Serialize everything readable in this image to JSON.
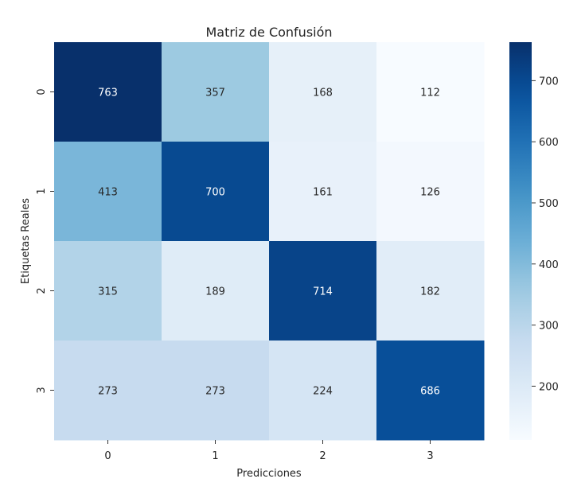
{
  "chart_data": {
    "type": "heatmap",
    "title": "Matriz de Confusión",
    "xlabel": "Predicciones",
    "ylabel": "Etiquetas Reales",
    "x_categories": [
      "0",
      "1",
      "2",
      "3"
    ],
    "y_categories": [
      "0",
      "1",
      "2",
      "3"
    ],
    "matrix": [
      [
        763,
        357,
        168,
        112
      ],
      [
        413,
        700,
        161,
        126
      ],
      [
        315,
        189,
        714,
        182
      ],
      [
        273,
        273,
        224,
        686
      ]
    ],
    "colormap": "Blues",
    "colorbar": {
      "min": 112,
      "max": 763,
      "ticks": [
        200,
        300,
        400,
        500,
        600,
        700
      ],
      "tick_labels": [
        "200",
        "300",
        "400",
        "500",
        "600",
        "700"
      ]
    },
    "colors": {
      "low": "#f7fbff",
      "high": "#08306b"
    }
  }
}
